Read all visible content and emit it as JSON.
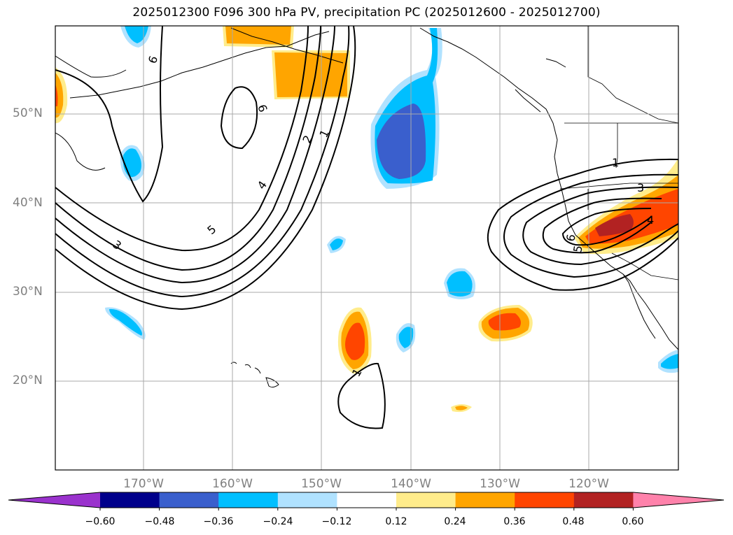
{
  "title": "2025012300 F096 300 hPa PV, precipitation PC (2025012600 - 2025012700)",
  "lat_labels": [
    "50°N",
    "40°N",
    "30°N",
    "20°N"
  ],
  "lon_labels": [
    "170°W",
    "160°W",
    "150°W",
    "140°W",
    "130°W",
    "120°W"
  ],
  "contour_labels": [
    "6",
    "6",
    "2",
    "1",
    "4",
    "5",
    "3",
    "1",
    "3",
    "4",
    "6",
    "5",
    "1"
  ],
  "colorbar": {
    "ticks": [
      "−0.60",
      "−0.48",
      "−0.36",
      "−0.24",
      "−0.12",
      "0.12",
      "0.24",
      "0.36",
      "0.48",
      "0.60"
    ],
    "colors": [
      "#9a32cd",
      "#00008b",
      "#3a5fcd",
      "#00bfff",
      "#b0e2ff",
      "#ffffff",
      "#ffec8b",
      "#ffa500",
      "#ff4500",
      "#b22222",
      "#ff82ab"
    ]
  }
}
